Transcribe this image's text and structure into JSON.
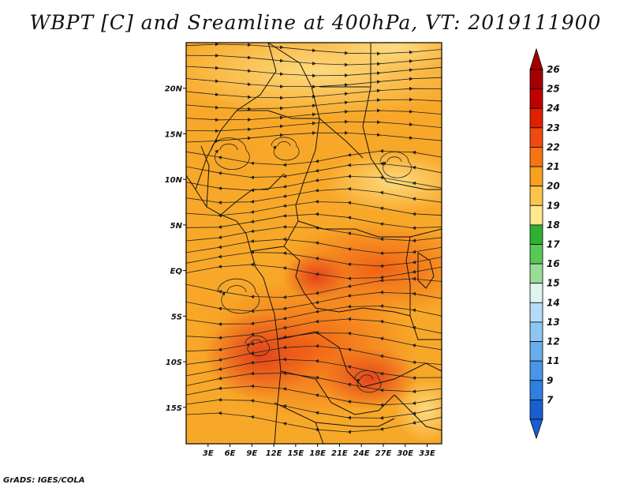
{
  "title": "WBPT [C] and Sreamline at 400hPa, VT: 2019111900",
  "credit": "GrADS: IGES/COLA",
  "map": {
    "lon_range": [
      0,
      35
    ],
    "lat_range": [
      -19,
      25
    ],
    "lon_ticks": [
      {
        "value": 3,
        "label": "3E"
      },
      {
        "value": 6,
        "label": "6E"
      },
      {
        "value": 9,
        "label": "9E"
      },
      {
        "value": 12,
        "label": "12E"
      },
      {
        "value": 15,
        "label": "15E"
      },
      {
        "value": 18,
        "label": "18E"
      },
      {
        "value": 21,
        "label": "21E"
      },
      {
        "value": 24,
        "label": "24E"
      },
      {
        "value": 27,
        "label": "27E"
      },
      {
        "value": 30,
        "label": "30E"
      },
      {
        "value": 33,
        "label": "33E"
      }
    ],
    "lat_ticks": [
      {
        "value": 20,
        "label": "20N"
      },
      {
        "value": 15,
        "label": "15N"
      },
      {
        "value": 10,
        "label": "10N"
      },
      {
        "value": 5,
        "label": "5N"
      },
      {
        "value": 0,
        "label": "EQ"
      },
      {
        "value": -5,
        "label": "5S"
      },
      {
        "value": -10,
        "label": "10S"
      },
      {
        "value": -15,
        "label": "15S"
      }
    ]
  },
  "colorbar": {
    "levels": [
      {
        "label": "26",
        "color": "#a50000"
      },
      {
        "label": "25",
        "color": "#c00000"
      },
      {
        "label": "24",
        "color": "#e02000"
      },
      {
        "label": "23",
        "color": "#f04a10"
      },
      {
        "label": "22",
        "color": "#f57512"
      },
      {
        "label": "21",
        "color": "#f8a020"
      },
      {
        "label": "20",
        "color": "#fbc54c"
      },
      {
        "label": "19",
        "color": "#fde890"
      },
      {
        "label": "18",
        "color": "#30b030"
      },
      {
        "label": "17",
        "color": "#58c858"
      },
      {
        "label": "16",
        "color": "#98dc98"
      },
      {
        "label": "15",
        "color": "#dff5f0"
      },
      {
        "label": "14",
        "color": "#b4dcf8"
      },
      {
        "label": "13",
        "color": "#8ec6f2"
      },
      {
        "label": "12",
        "color": "#68aeec"
      },
      {
        "label": "11",
        "color": "#4a96e6"
      },
      {
        "label": "9",
        "color": "#2e7fe0"
      },
      {
        "label": "7",
        "color": "#1a5fd2"
      }
    ],
    "top_color": "#a50000",
    "bottom_color": "#1a5fd2"
  }
}
